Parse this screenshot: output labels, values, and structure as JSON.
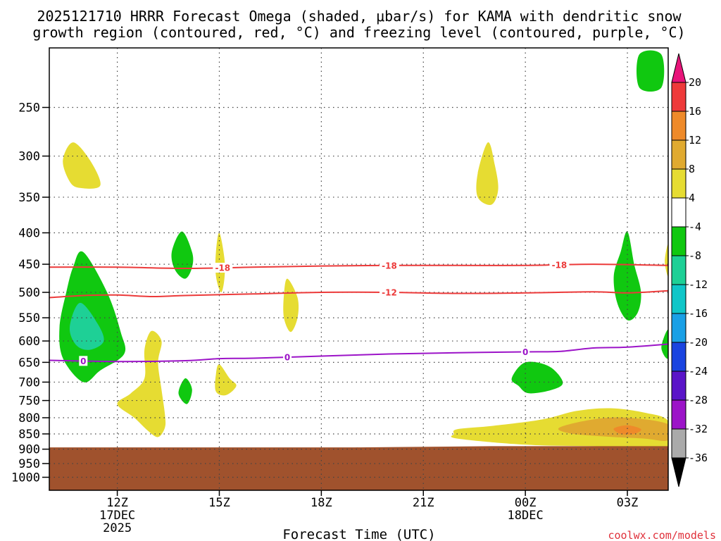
{
  "title_line1": "2025121710 HRRR Forecast Omega (shaded, μbar/s) for KAMA with dendritic snow",
  "title_line2": "growth region (contoured, red, °C) and freezing level (contoured, purple, °C)",
  "credit": "coolwx.com/models",
  "colors": {
    "ground": "#a0522d",
    "dgz_contour": "#ec3a3a",
    "freezing_contour": "#9c14c8"
  },
  "chart_data": {
    "type": "heatmap",
    "title": "2025121710 HRRR Forecast Omega (shaded, μbar/s) for KAMA with dendritic snow growth region (contoured, red, °C) and freezing level (contoured, purple, °C)",
    "xlabel": "Forecast Time (UTC)",
    "ylabel": "",
    "xlim": [
      10,
      28.2
    ],
    "ylim": [
      1050,
      200
    ],
    "x_ticks": [
      {
        "x": 12,
        "label": "12Z",
        "sub1": "17DEC",
        "sub2": "2025"
      },
      {
        "x": 15,
        "label": "15Z",
        "sub1": "",
        "sub2": ""
      },
      {
        "x": 18,
        "label": "18Z",
        "sub1": "",
        "sub2": ""
      },
      {
        "x": 21,
        "label": "21Z",
        "sub1": "",
        "sub2": ""
      },
      {
        "x": 24,
        "label": "00Z",
        "sub1": "18DEC",
        "sub2": ""
      },
      {
        "x": 27,
        "label": "03Z",
        "sub1": "",
        "sub2": ""
      }
    ],
    "y_ticks": [
      {
        "p": 250,
        "label": "250"
      },
      {
        "p": 300,
        "label": "300"
      },
      {
        "p": 350,
        "label": "350"
      },
      {
        "p": 400,
        "label": "400"
      },
      {
        "p": 450,
        "label": "450"
      },
      {
        "p": 500,
        "label": "500"
      },
      {
        "p": 550,
        "label": "550"
      },
      {
        "p": 600,
        "label": "600"
      },
      {
        "p": 650,
        "label": "650"
      },
      {
        "p": 700,
        "label": "700"
      },
      {
        "p": 750,
        "label": "750"
      },
      {
        "p": 800,
        "label": "800"
      },
      {
        "p": 850,
        "label": "850"
      },
      {
        "p": 900,
        "label": "900"
      },
      {
        "p": 950,
        "label": "950"
      },
      {
        "p": 1000,
        "label": "1000"
      }
    ],
    "grid": true,
    "colorbar": {
      "units": "μbar/s",
      "levels": [
        "20",
        "16",
        "12",
        "8",
        "4",
        "-4",
        "-8",
        "-12",
        "-16",
        "-20",
        "-24",
        "-28",
        "-32",
        "-36"
      ],
      "bins": [
        {
          "range": [
            16,
            20
          ],
          "color": "#ee3a3a"
        },
        {
          "range": [
            12,
            16
          ],
          "color": "#ee8a2a"
        },
        {
          "range": [
            8,
            12
          ],
          "color": "#e0aa30"
        },
        {
          "range": [
            4,
            8
          ],
          "color": "#e6dc32"
        },
        {
          "range": [
            -4,
            4
          ],
          "color": "#ffffff"
        },
        {
          "range": [
            -8,
            -4
          ],
          "color": "#10c810"
        },
        {
          "range": [
            -12,
            -8
          ],
          "color": "#1ed096"
        },
        {
          "range": [
            -16,
            -12
          ],
          "color": "#10c6c8"
        },
        {
          "range": [
            -20,
            -16
          ],
          "color": "#1aa0e6"
        },
        {
          "range": [
            -24,
            -20
          ],
          "color": "#1a44e0"
        },
        {
          "range": [
            -28,
            -24
          ],
          "color": "#5a14c8"
        },
        {
          "range": [
            -32,
            -28
          ],
          "color": "#9c14c8"
        },
        {
          "range": [
            -36,
            -32
          ],
          "color": "#aaaaaa"
        }
      ],
      "over_color": "#e8147a",
      "under_color": "#000000"
    },
    "shaded_regions": [
      {
        "name": "lift-1100z-upper",
        "color": "#e6dc32",
        "pts": [
          [
            10.6,
            330
          ],
          [
            10.4,
            305
          ],
          [
            10.7,
            285
          ],
          [
            11.2,
            305
          ],
          [
            11.5,
            335
          ],
          [
            10.9,
            338
          ]
        ]
      },
      {
        "name": "sink-1100z-deep",
        "color": "#10c810",
        "pts": [
          [
            11.0,
            430
          ],
          [
            11.7,
            500
          ],
          [
            12.1,
            580
          ],
          [
            12.2,
            630
          ],
          [
            11.5,
            670
          ],
          [
            11.0,
            700
          ],
          [
            10.4,
            640
          ],
          [
            10.3,
            570
          ],
          [
            10.5,
            500
          ],
          [
            10.7,
            455
          ]
        ]
      },
      {
        "name": "sink-1100z-core",
        "color": "#1ed096",
        "pts": [
          [
            10.9,
            520
          ],
          [
            11.4,
            560
          ],
          [
            11.6,
            600
          ],
          [
            11.2,
            620
          ],
          [
            10.8,
            610
          ],
          [
            10.6,
            570
          ]
        ]
      },
      {
        "name": "lift-1300z-column",
        "color": "#e6dc32",
        "pts": [
          [
            13.0,
            578
          ],
          [
            13.3,
            600
          ],
          [
            13.2,
            650
          ],
          [
            13.3,
            720
          ],
          [
            13.4,
            790
          ],
          [
            13.4,
            830
          ],
          [
            13.2,
            860
          ],
          [
            12.9,
            840
          ],
          [
            12.5,
            800
          ],
          [
            12.0,
            760
          ],
          [
            12.4,
            730
          ],
          [
            12.8,
            690
          ],
          [
            12.8,
            620
          ]
        ]
      },
      {
        "name": "sink-1400z-upper",
        "color": "#10c810",
        "pts": [
          [
            13.9,
            398
          ],
          [
            14.2,
            430
          ],
          [
            14.2,
            455
          ],
          [
            14.0,
            475
          ],
          [
            13.7,
            460
          ],
          [
            13.6,
            430
          ]
        ]
      },
      {
        "name": "lift-1500z-thin",
        "color": "#e6dc32",
        "pts": [
          [
            15.0,
            400
          ],
          [
            15.15,
            440
          ],
          [
            15.15,
            475
          ],
          [
            15.05,
            500
          ],
          [
            14.9,
            470
          ],
          [
            14.9,
            430
          ]
        ]
      },
      {
        "name": "sink-1400z-lower",
        "color": "#10c810",
        "pts": [
          [
            14.0,
            690
          ],
          [
            14.2,
            720
          ],
          [
            14.05,
            760
          ],
          [
            13.8,
            730
          ]
        ]
      },
      {
        "name": "lift-1500z-lower",
        "color": "#e6dc32",
        "pts": [
          [
            15.0,
            655
          ],
          [
            15.3,
            690
          ],
          [
            15.5,
            710
          ],
          [
            15.2,
            735
          ],
          [
            14.9,
            725
          ],
          [
            14.9,
            680
          ]
        ]
      },
      {
        "name": "lift-1700z",
        "color": "#e6dc32",
        "pts": [
          [
            17.0,
            475
          ],
          [
            17.3,
            510
          ],
          [
            17.3,
            550
          ],
          [
            17.1,
            580
          ],
          [
            16.9,
            550
          ],
          [
            16.9,
            505
          ]
        ]
      },
      {
        "name": "lift-2300z-upper",
        "color": "#e6dc32",
        "pts": [
          [
            22.9,
            285
          ],
          [
            23.1,
            310
          ],
          [
            23.2,
            340
          ],
          [
            23.0,
            360
          ],
          [
            22.6,
            350
          ],
          [
            22.6,
            320
          ]
        ]
      },
      {
        "name": "sink-0000z-low",
        "color": "#10c810",
        "pts": [
          [
            24.0,
            650
          ],
          [
            24.7,
            660
          ],
          [
            25.1,
            700
          ],
          [
            24.8,
            720
          ],
          [
            24.1,
            730
          ],
          [
            23.8,
            710
          ],
          [
            23.6,
            690
          ]
        ]
      },
      {
        "name": "sink-0300z-upper",
        "color": "#10c810",
        "pts": [
          [
            27.0,
            398
          ],
          [
            27.2,
            450
          ],
          [
            27.4,
            500
          ],
          [
            27.3,
            540
          ],
          [
            27.0,
            555
          ],
          [
            26.7,
            520
          ],
          [
            26.6,
            470
          ],
          [
            26.8,
            430
          ]
        ]
      },
      {
        "name": "sink-0300z-top",
        "color": "#10c810",
        "pts": [
          [
            27.35,
            205
          ],
          [
            28.0,
            205
          ],
          [
            28.0,
            232
          ],
          [
            27.35,
            232
          ]
        ]
      },
      {
        "name": "sink-0400z-edge",
        "color": "#10c810",
        "pts": [
          [
            28.2,
            575
          ],
          [
            28.2,
            640
          ],
          [
            28.0,
            615
          ]
        ]
      },
      {
        "name": "lift-0400z-edge",
        "color": "#e6dc32",
        "pts": [
          [
            28.2,
            418
          ],
          [
            28.2,
            470
          ],
          [
            28.1,
            445
          ]
        ]
      },
      {
        "name": "lift-0100z-low",
        "color": "#e6dc32",
        "pts": [
          [
            22.0,
            835
          ],
          [
            23.0,
            825
          ],
          [
            24.5,
            805
          ],
          [
            25.5,
            780
          ],
          [
            26.5,
            772
          ],
          [
            27.5,
            785
          ],
          [
            28.2,
            810
          ],
          [
            28.2,
            892
          ],
          [
            26.0,
            890
          ],
          [
            24.0,
            885
          ],
          [
            22.0,
            865
          ],
          [
            21.9,
            850
          ]
        ]
      },
      {
        "name": "lift-0200z-moderate",
        "color": "#e0aa30",
        "pts": [
          [
            25.0,
            830
          ],
          [
            26.0,
            805
          ],
          [
            27.0,
            800
          ],
          [
            28.2,
            820
          ],
          [
            28.2,
            870
          ],
          [
            27.5,
            865
          ],
          [
            26.3,
            858
          ],
          [
            25.3,
            848
          ]
        ]
      },
      {
        "name": "lift-0300z-strong",
        "color": "#ee8a2a",
        "pts": [
          [
            26.6,
            833
          ],
          [
            27.0,
            823
          ],
          [
            27.4,
            835
          ],
          [
            27.2,
            850
          ],
          [
            26.8,
            850
          ]
        ]
      }
    ],
    "ground_top": [
      [
        10,
        894
      ],
      [
        19,
        894
      ],
      [
        23,
        890
      ],
      [
        28.2,
        890
      ]
    ],
    "contours": [
      {
        "name": "dgz-minus18",
        "label": "-18",
        "color": "#ec3a3a",
        "label_x": [
          15.1,
          20.0,
          25.0
        ],
        "pts": [
          [
            10,
            455
          ],
          [
            12,
            455
          ],
          [
            14,
            457
          ],
          [
            16,
            455
          ],
          [
            18,
            453
          ],
          [
            20,
            452
          ],
          [
            22,
            452
          ],
          [
            24,
            452
          ],
          [
            26,
            450
          ],
          [
            28.2,
            452
          ]
        ]
      },
      {
        "name": "dgz-minus12",
        "label": "-12",
        "color": "#ec3a3a",
        "label_x": [
          20.0
        ],
        "pts": [
          [
            10,
            510
          ],
          [
            11,
            506
          ],
          [
            12,
            505
          ],
          [
            13,
            508
          ],
          [
            14,
            506
          ],
          [
            16,
            503
          ],
          [
            18,
            500
          ],
          [
            20,
            500
          ],
          [
            22,
            502
          ],
          [
            24,
            501
          ],
          [
            26,
            499
          ],
          [
            27,
            501
          ],
          [
            28.2,
            497
          ]
        ]
      },
      {
        "name": "freezing-0",
        "label": "0",
        "color": "#9c14c8",
        "label_x": [
          11.0,
          17.0,
          24.0
        ],
        "pts": [
          [
            10,
            645
          ],
          [
            12,
            648
          ],
          [
            14,
            646
          ],
          [
            15,
            641
          ],
          [
            16,
            640
          ],
          [
            18,
            635
          ],
          [
            20,
            630
          ],
          [
            22,
            627
          ],
          [
            24,
            625
          ],
          [
            25,
            624
          ],
          [
            26,
            616
          ],
          [
            27,
            614
          ],
          [
            28.2,
            607
          ]
        ]
      }
    ]
  }
}
